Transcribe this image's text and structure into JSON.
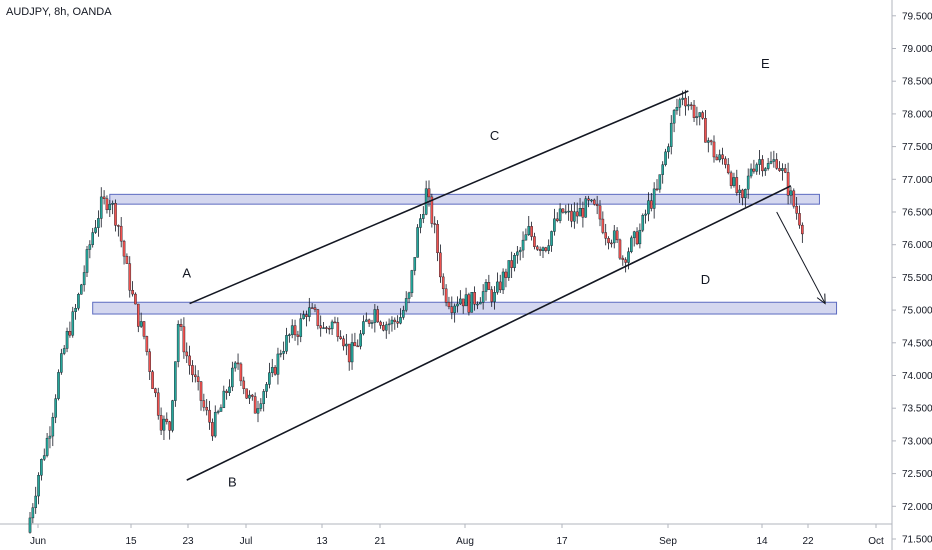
{
  "header": {
    "symbol_title": "AUDJPY, 8h, OANDA"
  },
  "colors": {
    "bull": "#26a69a",
    "bear": "#ef5350",
    "candle_outline": "#131722",
    "zone_fill": "#c5cae9",
    "zone_border": "#5c6bc0",
    "trendline": "#131722",
    "grid": "#f0f3fa",
    "axis": "#b2b5be"
  },
  "chart_data": {
    "type": "candlestick",
    "title": "AUDJPY, 8h, OANDA",
    "ylim": [
      71.5,
      79.5
    ],
    "y_ticks": [
      "71.500",
      "72.000",
      "72.500",
      "73.000",
      "73.500",
      "74.000",
      "74.500",
      "75.000",
      "75.500",
      "76.000",
      "76.500",
      "77.000",
      "77.500",
      "78.000",
      "78.500",
      "79.000",
      "79.500"
    ],
    "x_ticks": [
      "Jun",
      "15",
      "23",
      "Jul",
      "13",
      "21",
      "Aug",
      "17",
      "Sep",
      "14",
      "22",
      "Oct"
    ],
    "series": [
      {
        "points": [
          {
            "t": 0,
            "c": 71.6
          },
          {
            "t": 4,
            "c": 72.5
          },
          {
            "t": 8,
            "c": 73.2
          },
          {
            "t": 11,
            "c": 74.0
          },
          {
            "t": 14,
            "c": 74.6
          },
          {
            "t": 17,
            "c": 75.0
          },
          {
            "t": 20,
            "c": 75.6
          },
          {
            "t": 23,
            "c": 76.2
          },
          {
            "t": 26,
            "c": 76.6
          },
          {
            "t": 29,
            "c": 76.7
          },
          {
            "t": 32,
            "c": 76.3
          },
          {
            "t": 35,
            "c": 75.6
          },
          {
            "t": 38,
            "c": 75.0
          },
          {
            "t": 41,
            "c": 74.6
          },
          {
            "t": 44,
            "c": 73.9
          },
          {
            "t": 47,
            "c": 73.3
          },
          {
            "t": 50,
            "c": 73.2
          },
          {
            "t": 53,
            "c": 74.8
          },
          {
            "t": 56,
            "c": 74.3
          },
          {
            "t": 59,
            "c": 73.9
          },
          {
            "t": 62,
            "c": 73.5
          },
          {
            "t": 65,
            "c": 73.2
          },
          {
            "t": 68,
            "c": 73.5
          },
          {
            "t": 71,
            "c": 73.9
          },
          {
            "t": 74,
            "c": 74.2
          },
          {
            "t": 77,
            "c": 73.7
          },
          {
            "t": 80,
            "c": 73.5
          },
          {
            "t": 83,
            "c": 73.8
          },
          {
            "t": 86,
            "c": 74.0
          },
          {
            "t": 89,
            "c": 74.4
          },
          {
            "t": 92,
            "c": 74.6
          },
          {
            "t": 95,
            "c": 74.7
          },
          {
            "t": 98,
            "c": 75.0
          },
          {
            "t": 101,
            "c": 74.9
          },
          {
            "t": 104,
            "c": 74.7
          },
          {
            "t": 107,
            "c": 74.8
          },
          {
            "t": 110,
            "c": 74.7
          },
          {
            "t": 113,
            "c": 74.3
          },
          {
            "t": 116,
            "c": 74.5
          },
          {
            "t": 119,
            "c": 74.8
          },
          {
            "t": 122,
            "c": 75.0
          },
          {
            "t": 125,
            "c": 74.8
          },
          {
            "t": 128,
            "c": 74.8
          },
          {
            "t": 131,
            "c": 74.9
          },
          {
            "t": 134,
            "c": 75.2
          },
          {
            "t": 137,
            "c": 76.2
          },
          {
            "t": 140,
            "c": 76.8
          },
          {
            "t": 143,
            "c": 76.2
          },
          {
            "t": 146,
            "c": 75.3
          },
          {
            "t": 149,
            "c": 75.1
          },
          {
            "t": 152,
            "c": 75.2
          },
          {
            "t": 155,
            "c": 75.1
          },
          {
            "t": 158,
            "c": 75.2
          },
          {
            "t": 161,
            "c": 75.3
          },
          {
            "t": 164,
            "c": 75.2
          },
          {
            "t": 167,
            "c": 75.5
          },
          {
            "t": 170,
            "c": 75.7
          },
          {
            "t": 173,
            "c": 75.9
          },
          {
            "t": 176,
            "c": 76.2
          },
          {
            "t": 179,
            "c": 76.0
          },
          {
            "t": 182,
            "c": 76.0
          },
          {
            "t": 185,
            "c": 76.3
          },
          {
            "t": 188,
            "c": 76.5
          },
          {
            "t": 191,
            "c": 76.4
          },
          {
            "t": 194,
            "c": 76.5
          },
          {
            "t": 197,
            "c": 76.6
          },
          {
            "t": 200,
            "c": 76.5
          },
          {
            "t": 203,
            "c": 76.2
          },
          {
            "t": 206,
            "c": 76.1
          },
          {
            "t": 209,
            "c": 75.8
          },
          {
            "t": 212,
            "c": 76.0
          },
          {
            "t": 215,
            "c": 76.2
          },
          {
            "t": 218,
            "c": 76.6
          },
          {
            "t": 221,
            "c": 76.8
          },
          {
            "t": 224,
            "c": 77.4
          },
          {
            "t": 227,
            "c": 78.0
          },
          {
            "t": 230,
            "c": 78.3
          },
          {
            "t": 233,
            "c": 78.1
          },
          {
            "t": 236,
            "c": 77.9
          },
          {
            "t": 239,
            "c": 77.6
          },
          {
            "t": 242,
            "c": 77.3
          },
          {
            "t": 245,
            "c": 77.3
          },
          {
            "t": 248,
            "c": 76.9
          },
          {
            "t": 251,
            "c": 76.6
          },
          {
            "t": 254,
            "c": 77.2
          },
          {
            "t": 257,
            "c": 77.3
          },
          {
            "t": 260,
            "c": 77.2
          },
          {
            "t": 263,
            "c": 77.3
          },
          {
            "t": 266,
            "c": 77.0
          },
          {
            "t": 269,
            "c": 76.6
          },
          {
            "t": 272,
            "c": 76.3
          }
        ]
      }
    ],
    "zones": [
      {
        "name": "resistance",
        "y_top": 76.77,
        "y_bottom": 76.62,
        "t_start": 28,
        "t_end": 277
      },
      {
        "name": "support",
        "y_top": 75.12,
        "y_bottom": 74.94,
        "t_start": 22,
        "t_end": 283
      }
    ],
    "trendlines": [
      {
        "t1": 56,
        "y1": 75.1,
        "t2": 231,
        "y2": 78.35
      },
      {
        "t1": 55,
        "y1": 72.4,
        "t2": 267,
        "y2": 76.9
      }
    ],
    "annotations": [
      {
        "text": "A",
        "t": 55,
        "y": 75.5
      },
      {
        "text": "B",
        "t": 71,
        "y": 72.3
      },
      {
        "text": "C",
        "t": 163,
        "y": 77.6
      },
      {
        "text": "D",
        "t": 237,
        "y": 75.4
      },
      {
        "text": "E",
        "t": 258,
        "y": 78.7
      }
    ],
    "projection_arrow": {
      "t1": 262,
      "y1": 76.5,
      "t2": 279,
      "y2": 75.1
    },
    "grid": false
  }
}
